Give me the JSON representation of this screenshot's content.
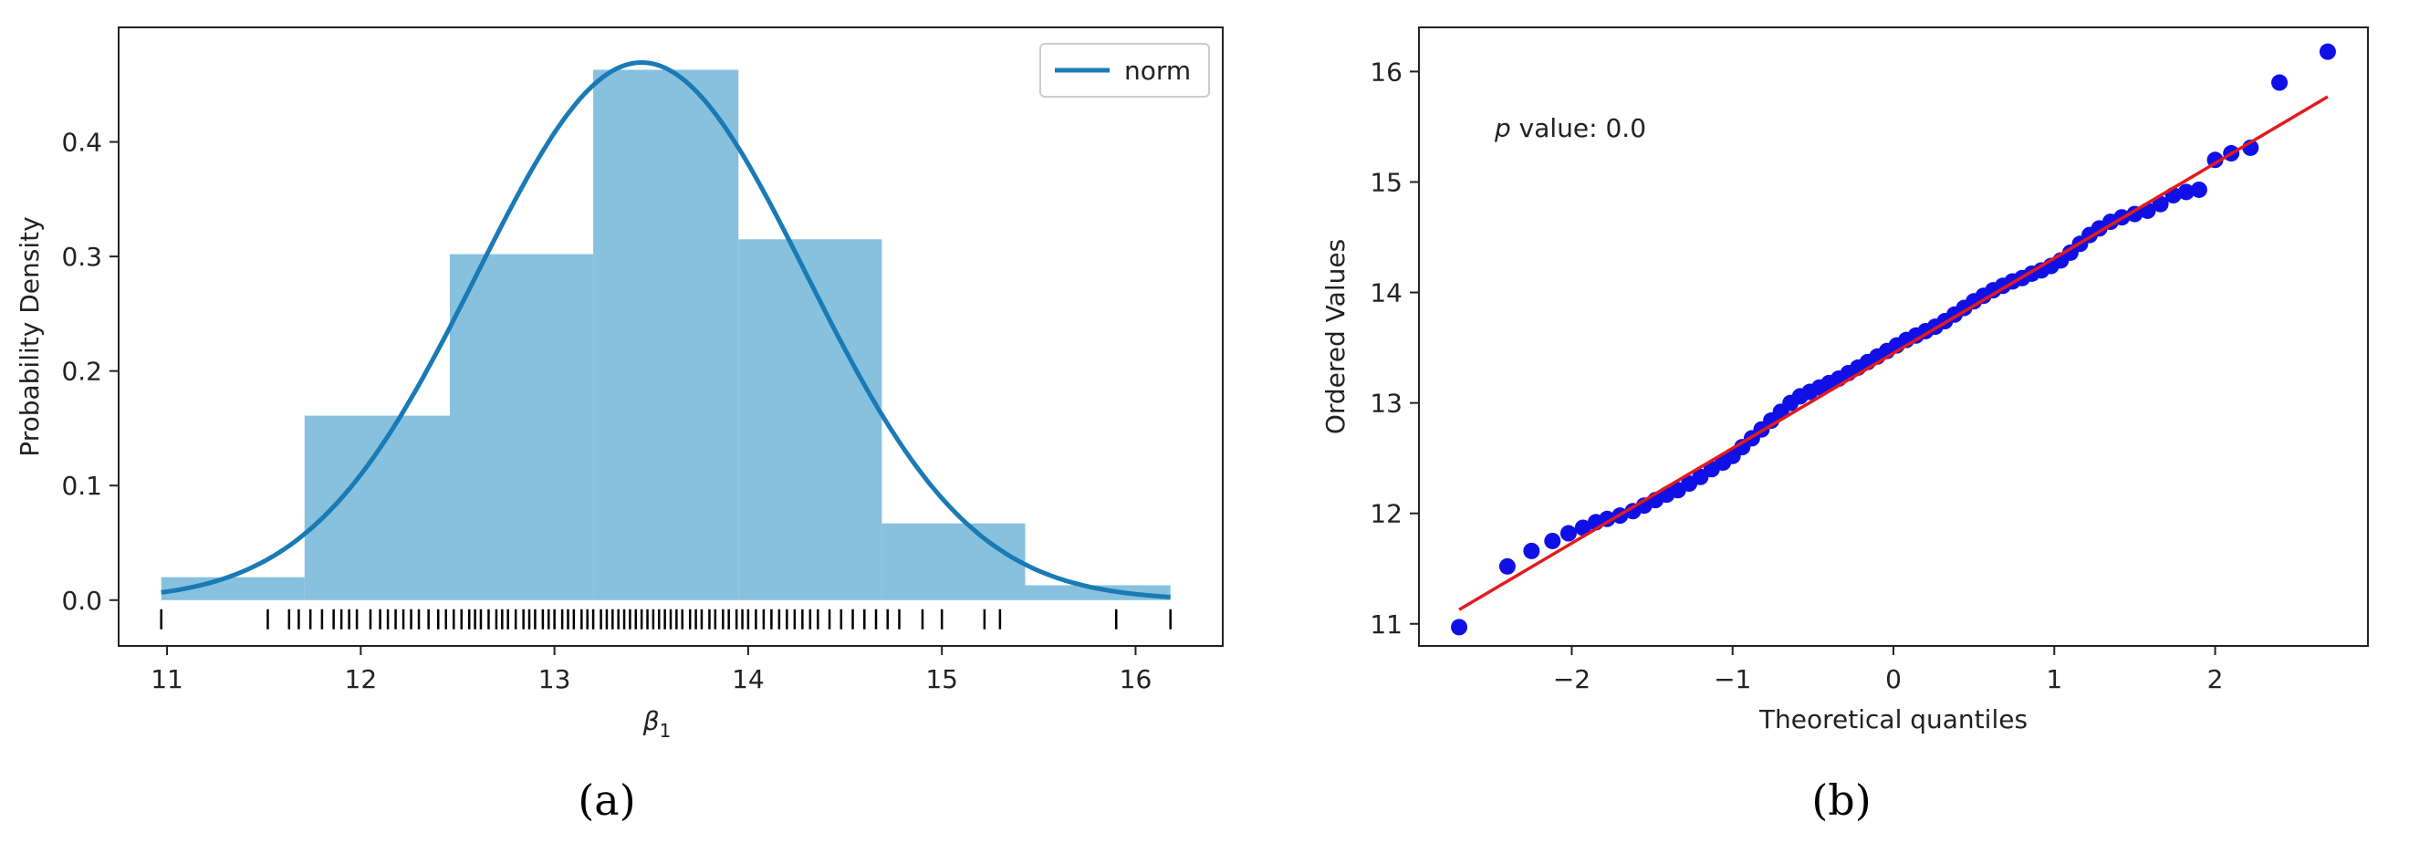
{
  "chart_data": [
    {
      "type": "bar",
      "panel_label": "(a)",
      "title": "",
      "xlabel": "β",
      "xlabel_sub": "1",
      "ylabel": "Probability Density",
      "xlim": [
        10.75,
        16.45
      ],
      "ylim": [
        -0.04,
        0.5
      ],
      "xticks": [
        11,
        12,
        13,
        14,
        15,
        16
      ],
      "xtick_labels": [
        "11",
        "12",
        "13",
        "14",
        "15",
        "16"
      ],
      "yticks": [
        0.0,
        0.1,
        0.2,
        0.3,
        0.4
      ],
      "ytick_labels": [
        "0.0",
        "0.1",
        "0.2",
        "0.3",
        "0.4"
      ],
      "histogram": {
        "bin_edges": [
          10.97,
          11.71,
          12.46,
          13.2,
          13.95,
          14.69,
          15.43,
          16.18
        ],
        "densities": [
          0.02,
          0.161,
          0.302,
          0.463,
          0.315,
          0.067,
          0.013
        ],
        "color": "#87c1de"
      },
      "pdf_curve": {
        "name": "norm",
        "mean": 13.45,
        "std": 0.85,
        "color": "#1a7ab5"
      },
      "legend": {
        "entries": [
          "norm"
        ],
        "location": "top-right"
      },
      "rug_values": [
        10.97,
        11.52,
        11.63,
        11.68,
        11.74,
        11.8,
        11.86,
        11.9,
        11.94,
        11.98,
        12.05,
        12.1,
        12.14,
        12.18,
        12.22,
        12.26,
        12.3,
        12.35,
        12.4,
        12.44,
        12.48,
        12.52,
        12.56,
        12.59,
        12.62,
        12.66,
        12.7,
        12.73,
        12.76,
        12.8,
        12.84,
        12.87,
        12.9,
        12.94,
        12.97,
        13.0,
        13.04,
        13.07,
        13.1,
        13.14,
        13.17,
        13.2,
        13.24,
        13.27,
        13.3,
        13.33,
        13.36,
        13.39,
        13.42,
        13.45,
        13.48,
        13.51,
        13.54,
        13.57,
        13.6,
        13.63,
        13.66,
        13.7,
        13.73,
        13.76,
        13.8,
        13.83,
        13.87,
        13.9,
        13.94,
        13.97,
        14.0,
        14.04,
        14.08,
        14.12,
        14.16,
        14.2,
        14.24,
        14.28,
        14.32,
        14.36,
        14.42,
        14.48,
        14.54,
        14.6,
        14.66,
        14.72,
        14.78,
        14.9,
        15.0,
        15.22,
        15.3,
        15.9,
        16.18
      ]
    },
    {
      "type": "scatter",
      "panel_label": "(b)",
      "title": "",
      "xlabel": "Theoretical quantiles",
      "ylabel": "Ordered Values",
      "annotation": {
        "italic": "p",
        "text": " value: 0.0"
      },
      "xlim": [
        -2.95,
        2.95
      ],
      "ylim": [
        10.8,
        16.4
      ],
      "xticks": [
        -2,
        -1,
        0,
        1,
        2
      ],
      "xtick_labels": [
        "−2",
        "−1",
        "0",
        "1",
        "2"
      ],
      "yticks": [
        11,
        12,
        13,
        14,
        15,
        16
      ],
      "ytick_labels": [
        "11",
        "12",
        "13",
        "14",
        "15",
        "16"
      ],
      "fit_line": {
        "slope": 0.86,
        "intercept": 13.45,
        "x_range": [
          -2.7,
          2.7
        ],
        "color": "#e41a1c"
      },
      "point_color": "#1010e6",
      "points": [
        [
          -2.7,
          10.97
        ],
        [
          -2.4,
          11.52
        ],
        [
          -2.25,
          11.66
        ],
        [
          -2.12,
          11.75
        ],
        [
          -2.02,
          11.82
        ],
        [
          -1.93,
          11.87
        ],
        [
          -1.85,
          11.92
        ],
        [
          -1.78,
          11.95
        ],
        [
          -1.7,
          11.98
        ],
        [
          -1.62,
          12.02
        ],
        [
          -1.55,
          12.07
        ],
        [
          -1.48,
          12.12
        ],
        [
          -1.41,
          12.17
        ],
        [
          -1.34,
          12.21
        ],
        [
          -1.27,
          12.27
        ],
        [
          -1.2,
          12.33
        ],
        [
          -1.13,
          12.4
        ],
        [
          -1.06,
          12.46
        ],
        [
          -1.0,
          12.52
        ],
        [
          -0.94,
          12.6
        ],
        [
          -0.88,
          12.68
        ],
        [
          -0.82,
          12.76
        ],
        [
          -0.76,
          12.84
        ],
        [
          -0.7,
          12.92
        ],
        [
          -0.64,
          13.0
        ],
        [
          -0.58,
          13.06
        ],
        [
          -0.52,
          13.1
        ],
        [
          -0.46,
          13.14
        ],
        [
          -0.4,
          13.18
        ],
        [
          -0.34,
          13.22
        ],
        [
          -0.28,
          13.27
        ],
        [
          -0.22,
          13.32
        ],
        [
          -0.16,
          13.37
        ],
        [
          -0.1,
          13.42
        ],
        [
          -0.04,
          13.47
        ],
        [
          0.02,
          13.52
        ],
        [
          0.08,
          13.57
        ],
        [
          0.14,
          13.61
        ],
        [
          0.2,
          13.65
        ],
        [
          0.26,
          13.69
        ],
        [
          0.32,
          13.74
        ],
        [
          0.38,
          13.8
        ],
        [
          0.44,
          13.86
        ],
        [
          0.5,
          13.92
        ],
        [
          0.56,
          13.97
        ],
        [
          0.62,
          14.02
        ],
        [
          0.68,
          14.06
        ],
        [
          0.74,
          14.1
        ],
        [
          0.8,
          14.13
        ],
        [
          0.86,
          14.17
        ],
        [
          0.92,
          14.2
        ],
        [
          0.98,
          14.24
        ],
        [
          1.04,
          14.29
        ],
        [
          1.1,
          14.36
        ],
        [
          1.16,
          14.44
        ],
        [
          1.22,
          14.52
        ],
        [
          1.28,
          14.58
        ],
        [
          1.35,
          14.64
        ],
        [
          1.42,
          14.68
        ],
        [
          1.5,
          14.71
        ],
        [
          1.58,
          14.74
        ],
        [
          1.66,
          14.8
        ],
        [
          1.74,
          14.88
        ],
        [
          1.82,
          14.91
        ],
        [
          1.9,
          14.93
        ],
        [
          2.0,
          15.2
        ],
        [
          2.1,
          15.26
        ],
        [
          2.22,
          15.31
        ],
        [
          2.4,
          15.9
        ],
        [
          2.7,
          16.18
        ]
      ]
    }
  ]
}
